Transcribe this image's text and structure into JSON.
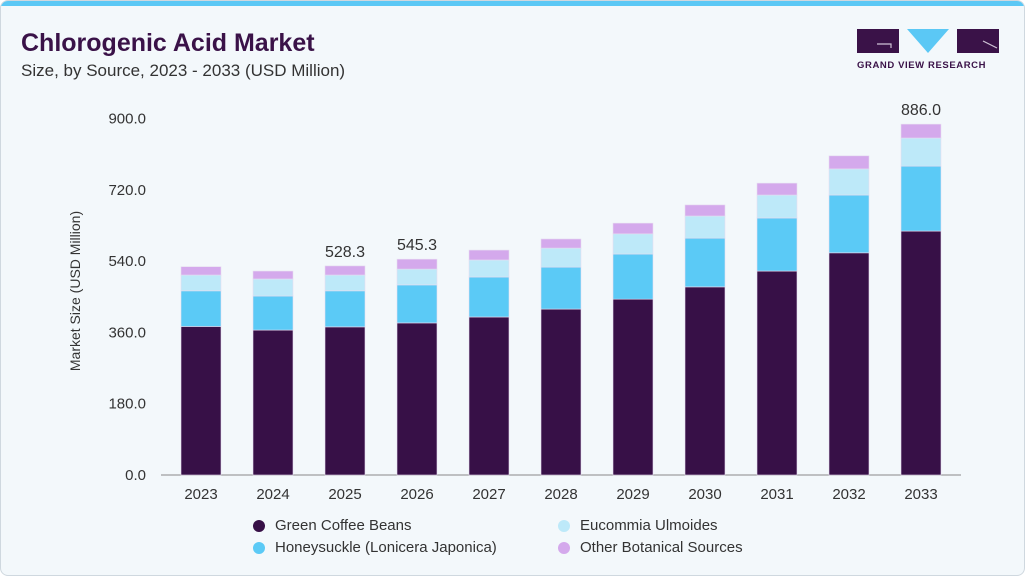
{
  "header": {
    "title": "Chlorogenic Acid Market",
    "subtitle": "Size, by Source, 2023 - 2033 (USD Million)"
  },
  "logo": {
    "text": "GRAND VIEW RESEARCH"
  },
  "colors": {
    "green_coffee": "#371047",
    "honeysuckle": "#5bcaf6",
    "eucommia": "#bde9f9",
    "other": "#d4a9ec",
    "stripe": "#5bc8f5"
  },
  "chart_data": {
    "type": "bar",
    "stacked": true,
    "title": "Chlorogenic Acid Market",
    "xlabel": "",
    "ylabel": "Market Size (USD Million)",
    "ylim": [
      0,
      900
    ],
    "yticks": [
      "0.0",
      "180.0",
      "360.0",
      "540.0",
      "720.0",
      "900.0"
    ],
    "ytick_values": [
      0,
      180,
      360,
      540,
      720,
      900
    ],
    "categories": [
      "2023",
      "2024",
      "2025",
      "2026",
      "2027",
      "2028",
      "2029",
      "2030",
      "2031",
      "2032",
      "2033"
    ],
    "series": [
      {
        "name": "Green Coffee Beans",
        "color": "#371047",
        "values": [
          375,
          366,
          374,
          384,
          399,
          419,
          444,
          475,
          515,
          561,
          616
        ]
      },
      {
        "name": "Honeysuckle (Lonicera Japonica)",
        "color": "#5bcaf6",
        "values": [
          90,
          86,
          91,
          96,
          101,
          106,
          114,
          123,
          134,
          146,
          164
        ]
      },
      {
        "name": "Eucommia Ulmoides",
        "color": "#bde9f9",
        "values": [
          40,
          43,
          40,
          40,
          43,
          48,
          51,
          56,
          58,
          66,
          71
        ]
      },
      {
        "name": "Other Botanical Sources",
        "color": "#d4a9ec",
        "values": [
          21,
          20,
          23,
          25,
          25,
          23,
          27,
          28,
          30,
          33,
          35
        ]
      }
    ],
    "data_labels": [
      {
        "category": "2025",
        "text": "528.3"
      },
      {
        "category": "2026",
        "text": "545.3"
      },
      {
        "category": "2033",
        "text": "886.0"
      }
    ],
    "legend_position": "bottom"
  },
  "legend": [
    "Green Coffee Beans",
    "Eucommia Ulmoides",
    "Honeysuckle (Lonicera Japonica)",
    "Other Botanical Sources"
  ]
}
